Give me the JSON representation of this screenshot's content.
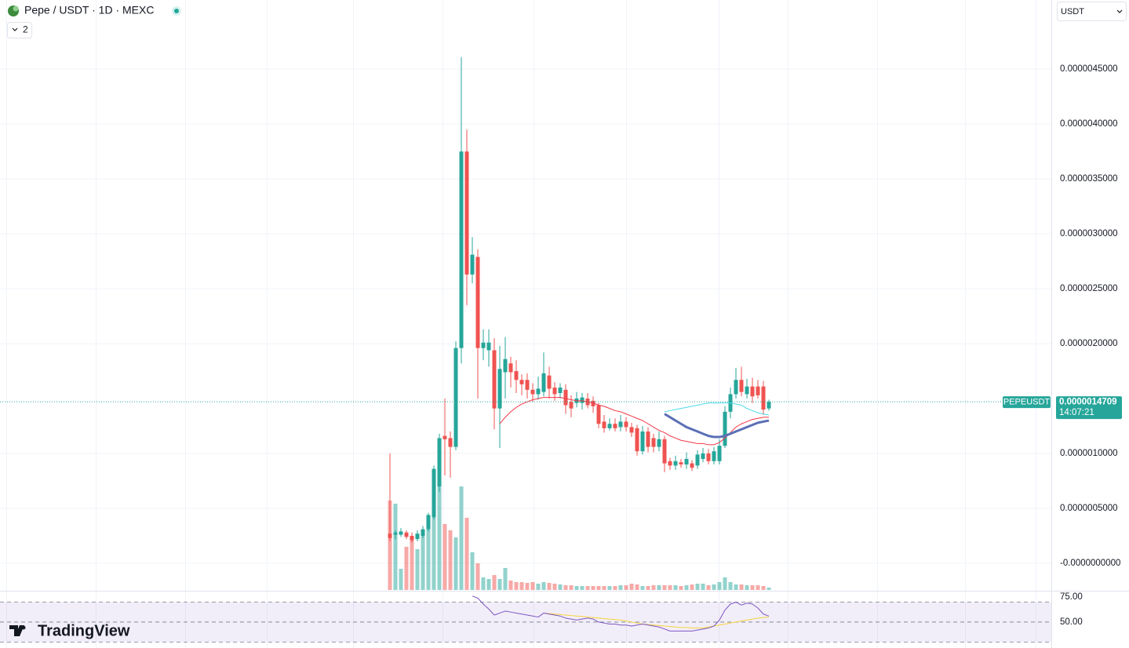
{
  "chart_data": {
    "type": "candlestick",
    "title": "Pepe / USDT · 1D · MEXC",
    "up_color": "#26a69a",
    "down_color": "#ef5350",
    "grid": true,
    "open": [
      2.7e-07,
      2.6e-07,
      2.6e-07,
      2.8e-07,
      2.5e-07,
      2.2e-07,
      2.5e-07,
      3.1e-07,
      4.2e-07,
      7e-07,
      1.16e-06,
      1.14e-06,
      1.06e-06,
      1.96e-06,
      3.75e-06,
      2.63e-06,
      2.79e-06,
      1.96e-06,
      1.94e-06,
      1.94e-06,
      1.41e-06,
      1.74e-06,
      1.82e-06,
      1.75e-06,
      1.67e-06,
      1.67e-06,
      1.58e-06,
      1.54e-06,
      1.56e-06,
      1.71e-06,
      1.6e-06,
      1.55e-06,
      1.58e-06,
      1.47e-06,
      1.46e-06,
      1.46e-06,
      1.5e-06,
      1.48e-06,
      1.44e-06,
      1.29e-06,
      1.23e-06,
      1.27e-06,
      1.24e-06,
      1.29e-06,
      1.24e-06,
      1.23e-06,
      1.02e-06,
      1.2e-06,
      1.14e-06,
      1.06e-06,
      1.13e-06,
      9.3e-07,
      8.9e-07,
      9.2e-07,
      9e-07,
      9.1e-07,
      8.9e-07,
      9.5e-07,
      1e-06,
      9.3e-07,
      9.3e-07,
      1.07e-06,
      1.38e-06,
      1.54e-06,
      1.67e-06,
      1.54e-06,
      1.61e-06,
      1.61e-06,
      1.61e-06,
      1.41e-06
    ],
    "high": [
      1e-06,
      3e-07,
      3.2e-07,
      3e-07,
      2.8e-07,
      3e-07,
      3.4e-07,
      4.6e-07,
      8.9e-07,
      1.18e-06,
      1.5e-06,
      1.2e-06,
      2.02e-06,
      4.61e-06,
      3.95e-06,
      2.97e-06,
      2.86e-06,
      2.13e-06,
      2.13e-06,
      2.05e-06,
      1.98e-06,
      2.06e-06,
      1.88e-06,
      1.85e-06,
      1.72e-06,
      1.73e-06,
      1.64e-06,
      1.7e-06,
      1.92e-06,
      1.79e-06,
      1.65e-06,
      1.64e-06,
      1.63e-06,
      1.53e-06,
      1.56e-06,
      1.55e-06,
      1.55e-06,
      1.52e-06,
      1.46e-06,
      1.35e-06,
      1.32e-06,
      1.32e-06,
      1.35e-06,
      1.33e-06,
      1.28e-06,
      1.26e-06,
      1.25e-06,
      1.24e-06,
      1.18e-06,
      1.2e-06,
      1.16e-06,
      9.6e-07,
      9.8e-07,
      9.5e-07,
      1.01e-06,
      9.4e-07,
      1.03e-06,
      1.05e-06,
      1.04e-06,
      1.06e-06,
      1.13e-06,
      1.43e-06,
      1.6e-06,
      1.78e-06,
      1.79e-06,
      1.68e-06,
      1.69e-06,
      1.67e-06,
      1.66e-06,
      1.49e-06
    ],
    "low": [
      2e-07,
      2.2e-07,
      2.4e-07,
      2.2e-07,
      1.9e-07,
      2e-07,
      2.3e-07,
      2.9e-07,
      4e-07,
      6.5e-07,
      8e-07,
      7.8e-07,
      1.03e-06,
      1.82e-06,
      2.35e-06,
      2.55e-06,
      1.5e-06,
      1.85e-06,
      1.79e-06,
      1.22e-06,
      1.05e-06,
      1.5e-06,
      1.6e-06,
      1.55e-06,
      1.53e-06,
      1.5e-06,
      1.47e-06,
      1.49e-06,
      1.52e-06,
      1.5e-06,
      1.48e-06,
      1.5e-06,
      1.36e-06,
      1.33e-06,
      1.42e-06,
      1.4e-06,
      1.41e-06,
      1.37e-06,
      1.23e-06,
      1.19e-06,
      1.21e-06,
      1.2e-06,
      1.2e-06,
      1.2e-06,
      1.15e-06,
      9.8e-07,
      9.9e-07,
      1.01e-06,
      1.01e-06,
      1.02e-06,
      8.3e-07,
      8.5e-07,
      8.5e-07,
      8.7e-07,
      8.6e-07,
      8.4e-07,
      8.6e-07,
      9.2e-07,
      9e-07,
      9e-07,
      9e-07,
      1.05e-06,
      1.32e-06,
      1.5e-06,
      1.52e-06,
      1.5e-06,
      1.46e-06,
      1.5e-06,
      1.35e-06,
      1.39e-06
    ],
    "close": [
      2.3e-07,
      2.8e-07,
      2.9e-07,
      2.4e-07,
      2.1e-07,
      2.7e-07,
      3.1e-07,
      4.4e-07,
      8.6e-07,
      1.14e-06,
      1.13e-06,
      1.06e-06,
      1.96e-06,
      3.75e-06,
      2.63e-06,
      2.81e-06,
      1.96e-06,
      2.01e-06,
      2.01e-06,
      1.41e-06,
      1.77e-06,
      1.86e-06,
      1.74e-06,
      1.67e-06,
      1.63e-06,
      1.58e-06,
      1.54e-06,
      1.59e-06,
      1.73e-06,
      1.59e-06,
      1.54e-06,
      1.6e-06,
      1.44e-06,
      1.41e-06,
      1.5e-06,
      1.51e-06,
      1.44e-06,
      1.43e-06,
      1.27e-06,
      1.23e-06,
      1.27e-06,
      1.23e-06,
      1.29e-06,
      1.24e-06,
      1.19e-06,
      1.02e-06,
      1.2e-06,
      1.06e-06,
      1.06e-06,
      1.13e-06,
      9.1e-07,
      8.9e-07,
      9.3e-07,
      9e-07,
      9.5e-07,
      8.7e-07,
      9.9e-07,
      1e-06,
      9.3e-07,
      1.02e-06,
      1.07e-06,
      1.38e-06,
      1.54e-06,
      1.67e-06,
      1.56e-06,
      1.61e-06,
      1.52e-06,
      1.53e-06,
      1.4e-06,
      1.4709e-06
    ],
    "volume": [
      114,
      110,
      27,
      55,
      68,
      52,
      72,
      94,
      154,
      132,
      84,
      76,
      67,
      132,
      92,
      48,
      34,
      16,
      14,
      19,
      14,
      28,
      12,
      10,
      10,
      9,
      10,
      8,
      10,
      9,
      8,
      7,
      6,
      6,
      5,
      5,
      5,
      5,
      5,
      5,
      5,
      5,
      6,
      6,
      8,
      7,
      5,
      5,
      6,
      6,
      6,
      6,
      6,
      5,
      6,
      7,
      8,
      8,
      6,
      7,
      10,
      16,
      10,
      7,
      7,
      6,
      6,
      6,
      5,
      3
    ],
    "overlays": [
      {
        "color": "#f23645",
        "values": [
          null,
          null,
          null,
          null,
          null,
          null,
          null,
          null,
          null,
          null,
          null,
          null,
          null,
          null,
          null,
          null,
          null,
          null,
          null,
          null,
          1.27e-06,
          1.33e-06,
          1.38e-06,
          1.42e-06,
          1.45e-06,
          1.47e-06,
          1.49e-06,
          1.5e-06,
          1.51e-06,
          1.51e-06,
          1.51e-06,
          1.51e-06,
          1.5e-06,
          1.49e-06,
          1.48e-06,
          1.48e-06,
          1.47e-06,
          1.46e-06,
          1.44e-06,
          1.43e-06,
          1.41e-06,
          1.39e-06,
          1.38e-06,
          1.36e-06,
          1.34e-06,
          1.32e-06,
          1.3e-06,
          1.27e-06,
          1.24e-06,
          1.21e-06,
          1.19e-06,
          1.16e-06,
          1.14e-06,
          1.12e-06,
          1.11e-06,
          1.1e-06,
          1.09e-06,
          1.09e-06,
          1.08e-06,
          1.08e-06,
          1.1e-06,
          1.14e-06,
          1.19e-06,
          1.24e-06,
          1.27e-06,
          1.29e-06,
          1.31e-06,
          1.32e-06,
          1.33e-06,
          1.33e-06
        ]
      },
      {
        "color": "#5b6fb5",
        "values": [
          null,
          null,
          null,
          null,
          null,
          null,
          null,
          null,
          null,
          null,
          null,
          null,
          null,
          null,
          null,
          null,
          null,
          null,
          null,
          null,
          null,
          null,
          null,
          null,
          null,
          null,
          null,
          null,
          null,
          null,
          null,
          null,
          null,
          null,
          null,
          null,
          null,
          null,
          null,
          null,
          null,
          null,
          null,
          null,
          null,
          null,
          null,
          null,
          null,
          null,
          1.36e-06,
          1.33e-06,
          1.3e-06,
          1.27e-06,
          1.24e-06,
          1.22e-06,
          1.2e-06,
          1.18e-06,
          1.16e-06,
          1.15e-06,
          1.15e-06,
          1.16e-06,
          1.18e-06,
          1.2e-06,
          1.22e-06,
          1.24e-06,
          1.26e-06,
          1.28e-06,
          1.29e-06,
          1.3e-06
        ]
      },
      {
        "color": "#4dd9e8",
        "values": [
          null,
          null,
          null,
          null,
          null,
          null,
          null,
          null,
          null,
          null,
          null,
          null,
          null,
          null,
          null,
          null,
          null,
          null,
          null,
          null,
          null,
          null,
          null,
          null,
          null,
          null,
          null,
          null,
          null,
          null,
          null,
          null,
          null,
          null,
          null,
          null,
          null,
          null,
          null,
          null,
          null,
          null,
          null,
          null,
          null,
          null,
          null,
          null,
          null,
          null,
          1.38e-06,
          1.39e-06,
          1.4e-06,
          1.41e-06,
          1.42e-06,
          1.43e-06,
          1.44e-06,
          1.45e-06,
          1.46e-06,
          1.46e-06,
          1.46e-06,
          1.46e-06,
          1.46e-06,
          1.45e-06,
          1.44e-06,
          1.41e-06,
          1.39e-06,
          1.37e-06,
          1.36e-06,
          1.35e-06
        ]
      }
    ],
    "ylim": [
      -2.43e-07,
      5.13e-06
    ],
    "yticks": [
      {
        "value": 4.5e-06,
        "label": "0.0000045000"
      },
      {
        "value": 4e-06,
        "label": "0.0000040000"
      },
      {
        "value": 3.5e-06,
        "label": "0.0000035000"
      },
      {
        "value": 3e-06,
        "label": "0.0000030000"
      },
      {
        "value": 2.5e-06,
        "label": "0.0000025000"
      },
      {
        "value": 2e-06,
        "label": "0.0000020000"
      },
      {
        "value": 1e-06,
        "label": "0.0000010000"
      },
      {
        "value": 5e-07,
        "label": "0.0000005000"
      },
      {
        "value": 0,
        "label": "-0.0000000000"
      }
    ],
    "last_price": 1.4709e-06,
    "last_price_label": "0.0000014709",
    "rsi": {
      "color": "#7e57c2",
      "ma_color": "#f5d33b",
      "band_color": "#7e57c2",
      "values": [
        null,
        null,
        null,
        null,
        null,
        null,
        null,
        null,
        null,
        null,
        null,
        null,
        null,
        null,
        null,
        76,
        74,
        68,
        63,
        57,
        59,
        61,
        60,
        59,
        58,
        57,
        56,
        55,
        59,
        58,
        57,
        56,
        54,
        53,
        52,
        53,
        54,
        53,
        50,
        49,
        48,
        48,
        47,
        47,
        46,
        47,
        48,
        47,
        46,
        45,
        43,
        41,
        41,
        41,
        41,
        41,
        42,
        43,
        44,
        46,
        52,
        62,
        68,
        70,
        67,
        69,
        68,
        64,
        58,
        56
      ],
      "ma_values": [
        null,
        null,
        null,
        null,
        null,
        null,
        null,
        null,
        null,
        null,
        null,
        null,
        null,
        null,
        null,
        null,
        null,
        null,
        null,
        null,
        null,
        null,
        null,
        null,
        null,
        null,
        null,
        null,
        59,
        58.5,
        58,
        57.5,
        57,
        56.5,
        56,
        55.5,
        55,
        54.5,
        54,
        53.5,
        53,
        52.5,
        52,
        51,
        50,
        49,
        48,
        47.5,
        47,
        46.5,
        46,
        45.5,
        45,
        44.5,
        44.5,
        44,
        44,
        44,
        45,
        46,
        47,
        48,
        49,
        50,
        51,
        52,
        53,
        54,
        54.5,
        55
      ],
      "ylim": [
        24,
        79.8
      ],
      "levels": [
        70,
        50,
        30
      ],
      "yticks": [
        {
          "value": 75,
          "label": "75.00"
        },
        {
          "value": 50,
          "label": "50.00"
        }
      ]
    }
  },
  "ui": {
    "indicators": "2",
    "currency": "USDT",
    "symbol_tag": "PEPEUSDT",
    "countdown": "14:07:21",
    "logo": "TradingView"
  }
}
